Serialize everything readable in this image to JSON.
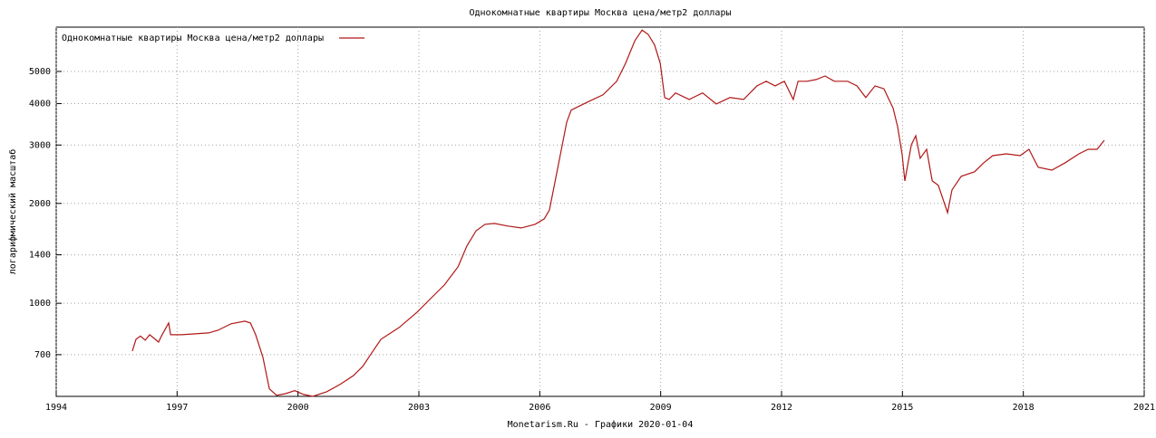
{
  "chart_data": {
    "type": "line",
    "title": "Однокомнатные квартиры Москва цена/метр2 доллары",
    "y_label": "логарифмический масштаб",
    "footer": "Monetarism.Ru - Графики  2020-01-04",
    "log_y": true,
    "grid": true,
    "legend": "top-left",
    "xlim": [
      1994,
      2021
    ],
    "xticks": [
      1994,
      1997,
      2000,
      2003,
      2006,
      2009,
      2012,
      2015,
      2018,
      2021
    ],
    "ylim": [
      524,
      6800
    ],
    "yticks": [
      700,
      1000,
      1400,
      2000,
      3000,
      4000,
      5000
    ],
    "x": [
      1995.89,
      1995.98,
      1996.09,
      1996.21,
      1996.32,
      1996.43,
      1996.54,
      1996.61,
      1996.79,
      1996.84,
      1997.11,
      1997.78,
      1998.01,
      1998.34,
      1998.68,
      1998.82,
      1998.95,
      1999.13,
      1999.29,
      1999.47,
      1999.69,
      1999.92,
      2000.14,
      2000.37,
      2000.71,
      2001.04,
      2001.38,
      2001.61,
      2001.83,
      2002.06,
      2002.51,
      2002.96,
      2003.29,
      2003.63,
      2003.97,
      2004.19,
      2004.42,
      2004.64,
      2004.87,
      2005.21,
      2005.54,
      2005.88,
      2006.11,
      2006.24,
      2006.45,
      2006.67,
      2006.78,
      2007.23,
      2007.57,
      2007.91,
      2008.13,
      2008.36,
      2008.54,
      2008.69,
      2008.85,
      2008.99,
      2009.1,
      2009.21,
      2009.37,
      2009.71,
      2010.04,
      2010.38,
      2010.72,
      2011.06,
      2011.39,
      2011.62,
      2011.84,
      2012.07,
      2012.29,
      2012.41,
      2012.63,
      2012.86,
      2013.08,
      2013.31,
      2013.64,
      2013.87,
      2014.09,
      2014.32,
      2014.54,
      2014.77,
      2014.88,
      2014.99,
      2015.06,
      2015.22,
      2015.33,
      2015.44,
      2015.6,
      2015.74,
      2015.89,
      2016.12,
      2016.23,
      2016.46,
      2016.79,
      2017.02,
      2017.24,
      2017.58,
      2017.92,
      2018.14,
      2018.37,
      2018.71,
      2019.04,
      2019.38,
      2019.61,
      2019.83,
      2020.01
    ],
    "series": [
      {
        "name": "Однокомнатные квартиры Москва цена/метр2 доллары",
        "color": "#b01818",
        "values": [
          718,
          779,
          796,
          774,
          804,
          784,
          764,
          796,
          872,
          804,
          804,
          814,
          829,
          867,
          883,
          872,
          804,
          687,
          552,
          528,
          534,
          545,
          531,
          524,
          541,
          569,
          606,
          646,
          709,
          779,
          845,
          941,
          1033,
          1135,
          1287,
          1488,
          1654,
          1730,
          1741,
          1709,
          1687,
          1730,
          1796,
          1912,
          2569,
          3521,
          3822,
          4068,
          4250,
          4670,
          5292,
          6188,
          6664,
          6468,
          6006,
          5292,
          4172,
          4116,
          4306,
          4116,
          4306,
          3990,
          4172,
          4116,
          4522,
          4670,
          4522,
          4670,
          4116,
          4670,
          4670,
          4725,
          4845,
          4670,
          4670,
          4522,
          4172,
          4522,
          4433,
          3871,
          3409,
          2821,
          2338,
          3003,
          3199,
          2737,
          2912,
          2338,
          2268,
          1876,
          2198,
          2415,
          2492,
          2653,
          2786,
          2821,
          2786,
          2912,
          2569,
          2520,
          2653,
          2821,
          2912,
          2912,
          3101
        ]
      }
    ]
  }
}
